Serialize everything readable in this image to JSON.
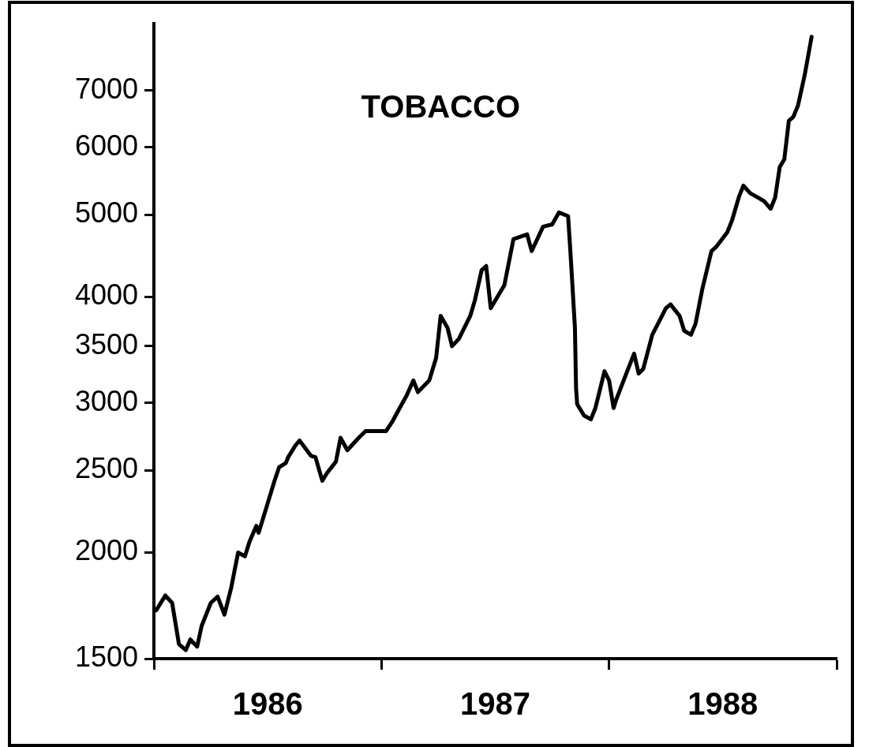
{
  "chart_data": {
    "type": "line",
    "title": "TOBACCO",
    "log": true,
    "marker": "none",
    "line_style": "solid",
    "xlim": [
      1986,
      1989
    ],
    "xticks": [
      {
        "value": 1986,
        "label": null
      },
      {
        "value": 1986.5,
        "label": "1986"
      },
      {
        "value": 1987,
        "label": null
      },
      {
        "value": 1987.5,
        "label": "1987"
      },
      {
        "value": 1988,
        "label": null
      },
      {
        "value": 1988.5,
        "label": "1988"
      },
      {
        "value": 1989,
        "label": null
      }
    ],
    "ylim": [
      1500,
      8400
    ],
    "yticks": [
      1500,
      2000,
      2500,
      3000,
      3500,
      4000,
      5000,
      6000,
      7000
    ],
    "x": [
      1986.01,
      1986.05,
      1986.08,
      1986.11,
      1986.14,
      1986.16,
      1986.19,
      1986.21,
      1986.25,
      1986.28,
      1986.31,
      1986.34,
      1986.37,
      1986.4,
      1986.42,
      1986.45,
      1986.46,
      1986.49,
      1986.53,
      1986.55,
      1986.58,
      1986.59,
      1986.62,
      1986.64,
      1986.69,
      1986.71,
      1986.74,
      1986.76,
      1986.8,
      1986.82,
      1986.85,
      1986.9,
      1986.93,
      1986.99,
      1987.02,
      1987.05,
      1987.08,
      1987.11,
      1987.14,
      1987.16,
      1987.21,
      1987.24,
      1987.26,
      1987.29,
      1987.31,
      1987.34,
      1987.39,
      1987.41,
      1987.44,
      1987.46,
      1987.48,
      1987.54,
      1987.58,
      1987.64,
      1987.66,
      1987.71,
      1987.75,
      1987.78,
      1987.82,
      1987.83,
      1987.85,
      1987.855,
      1987.86,
      1987.89,
      1987.92,
      1987.94,
      1987.98,
      1988.0,
      1988.02,
      1988.03,
      1988.07,
      1988.11,
      1988.13,
      1988.15,
      1988.19,
      1988.25,
      1988.27,
      1988.31,
      1988.33,
      1988.36,
      1988.38,
      1988.41,
      1988.45,
      1988.47,
      1988.52,
      1988.54,
      1988.57,
      1988.59,
      1988.62,
      1988.68,
      1988.71,
      1988.73,
      1988.75,
      1988.77,
      1988.79,
      1988.81,
      1988.83,
      1988.86,
      1988.89
    ],
    "series": [
      {
        "color": "#000000",
        "values": [
          1710,
          1780,
          1745,
          1560,
          1535,
          1580,
          1550,
          1640,
          1745,
          1775,
          1690,
          1820,
          2000,
          1980,
          2060,
          2150,
          2110,
          2240,
          2430,
          2520,
          2550,
          2590,
          2670,
          2710,
          2600,
          2590,
          2430,
          2480,
          2560,
          2730,
          2640,
          2730,
          2780,
          2780,
          2780,
          2860,
          2960,
          3060,
          3190,
          3090,
          3190,
          3390,
          3800,
          3680,
          3500,
          3570,
          3800,
          3960,
          4300,
          4350,
          3880,
          4130,
          4680,
          4740,
          4530,
          4840,
          4870,
          5030,
          4980,
          4530,
          3680,
          3120,
          2990,
          2900,
          2870,
          2960,
          3270,
          3190,
          2960,
          3020,
          3220,
          3430,
          3250,
          3290,
          3610,
          3880,
          3920,
          3800,
          3650,
          3610,
          3720,
          4090,
          4530,
          4580,
          4770,
          4920,
          5240,
          5410,
          5300,
          5190,
          5080,
          5240,
          5690,
          5810,
          6450,
          6520,
          6720,
          7310,
          8100
        ]
      }
    ]
  }
}
